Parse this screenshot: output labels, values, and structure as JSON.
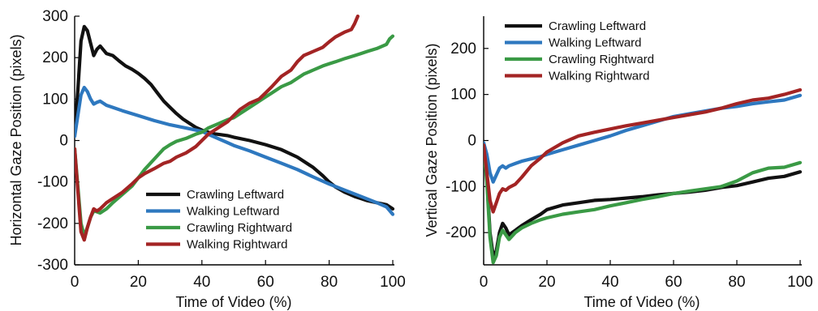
{
  "chart_data": [
    {
      "type": "line",
      "xlabel": "Time of Video (%)",
      "ylabel": "Horizontal Gaze Position (pixels)",
      "xlim": [
        0,
        100
      ],
      "ylim": [
        -300,
        300
      ],
      "xticks": [
        "0",
        "20",
        "40",
        "60",
        "80",
        "100"
      ],
      "yticks": [
        "300",
        "200",
        "100",
        "0",
        "-100",
        "-200",
        "-300"
      ],
      "xtick_values": [
        0,
        20,
        40,
        60,
        80,
        100
      ],
      "ytick_values": [
        300,
        200,
        100,
        0,
        -100,
        -200,
        -300
      ],
      "legend_position": "bottom-right",
      "grid": false,
      "series": [
        {
          "name": "Crawling Leftward",
          "color": "#111111",
          "x": [
            0,
            1,
            2,
            3,
            4,
            5,
            6,
            7,
            8,
            10,
            12,
            14,
            16,
            18,
            20,
            22,
            24,
            26,
            28,
            30,
            32,
            34,
            36,
            38,
            40,
            42,
            44,
            46,
            48,
            50,
            55,
            60,
            65,
            70,
            75,
            78,
            80,
            82,
            85,
            88,
            90,
            92,
            95,
            98,
            100
          ],
          "y": [
            20,
            120,
            240,
            275,
            265,
            235,
            205,
            220,
            228,
            210,
            205,
            192,
            180,
            172,
            162,
            150,
            135,
            115,
            95,
            80,
            65,
            52,
            42,
            32,
            25,
            20,
            16,
            14,
            12,
            8,
            0,
            -10,
            -22,
            -40,
            -65,
            -85,
            -100,
            -112,
            -125,
            -135,
            -140,
            -145,
            -150,
            -155,
            -165
          ]
        },
        {
          "name": "Walking Leftward",
          "color": "#2e78bf",
          "x": [
            0,
            1,
            2,
            3,
            4,
            5,
            6,
            7,
            8,
            10,
            12,
            15,
            20,
            25,
            30,
            35,
            40,
            42,
            45,
            48,
            50,
            55,
            60,
            65,
            70,
            75,
            80,
            85,
            90,
            95,
            98,
            100
          ],
          "y": [
            10,
            60,
            110,
            128,
            118,
            100,
            88,
            92,
            95,
            85,
            80,
            72,
            60,
            48,
            38,
            30,
            22,
            15,
            5,
            -5,
            -12,
            -25,
            -40,
            -55,
            -70,
            -88,
            -105,
            -120,
            -135,
            -150,
            -160,
            -178
          ]
        },
        {
          "name": "Crawling Rightward",
          "color": "#3a9a45",
          "x": [
            0,
            1,
            2,
            3,
            4,
            5,
            6,
            7,
            8,
            10,
            12,
            15,
            18,
            20,
            22,
            25,
            28,
            30,
            32,
            35,
            38,
            40,
            42,
            45,
            48,
            50,
            52,
            55,
            58,
            60,
            62,
            65,
            68,
            70,
            72,
            75,
            78,
            80,
            82,
            85,
            88,
            90,
            92,
            95,
            98,
            99,
            100
          ],
          "y": [
            -20,
            -110,
            -200,
            -230,
            -210,
            -185,
            -170,
            -172,
            -175,
            -165,
            -150,
            -130,
            -110,
            -90,
            -70,
            -45,
            -20,
            -10,
            -2,
            5,
            15,
            20,
            30,
            40,
            50,
            55,
            65,
            80,
            95,
            105,
            115,
            130,
            140,
            150,
            160,
            170,
            180,
            185,
            190,
            198,
            205,
            210,
            215,
            222,
            232,
            245,
            252
          ]
        },
        {
          "name": "Walking Rightward",
          "color": "#a32424",
          "x": [
            0,
            1,
            2,
            3,
            4,
            5,
            6,
            7,
            8,
            10,
            12,
            15,
            18,
            20,
            22,
            25,
            28,
            30,
            32,
            35,
            38,
            40,
            42,
            45,
            48,
            50,
            52,
            55,
            58,
            60,
            62,
            65,
            68,
            70,
            72,
            75,
            78,
            80,
            82,
            85,
            87,
            88,
            89
          ],
          "y": [
            -20,
            -120,
            -220,
            -240,
            -210,
            -185,
            -165,
            -170,
            -165,
            -150,
            -140,
            -125,
            -105,
            -90,
            -80,
            -68,
            -55,
            -50,
            -40,
            -30,
            -15,
            0,
            15,
            30,
            45,
            60,
            75,
            90,
            100,
            115,
            130,
            155,
            170,
            190,
            205,
            215,
            225,
            238,
            250,
            262,
            268,
            282,
            300
          ]
        }
      ]
    },
    {
      "type": "line",
      "xlabel": "Time of Video (%)",
      "ylabel": "Vertical Gaze Position (pixels)",
      "xlim": [
        0,
        100
      ],
      "ylim": [
        -270,
        270
      ],
      "xticks": [
        "0",
        "20",
        "40",
        "60",
        "80",
        "100"
      ],
      "yticks": [
        "200",
        "100",
        "0",
        "-100",
        "-200"
      ],
      "xtick_values": [
        0,
        20,
        40,
        60,
        80,
        100
      ],
      "ytick_values": [
        200,
        100,
        0,
        -100,
        -200
      ],
      "legend_position": "top-left",
      "grid": false,
      "series": [
        {
          "name": "Crawling Leftward",
          "color": "#111111",
          "x": [
            0,
            1,
            2,
            3,
            4,
            5,
            6,
            7,
            8,
            10,
            12,
            15,
            18,
            20,
            25,
            30,
            35,
            40,
            45,
            50,
            55,
            60,
            65,
            70,
            75,
            80,
            85,
            90,
            95,
            100
          ],
          "y": [
            -10,
            -80,
            -200,
            -250,
            -240,
            -200,
            -180,
            -190,
            -205,
            -195,
            -185,
            -172,
            -160,
            -150,
            -140,
            -135,
            -130,
            -128,
            -125,
            -122,
            -118,
            -115,
            -112,
            -108,
            -102,
            -98,
            -90,
            -82,
            -78,
            -68
          ]
        },
        {
          "name": "Walking Leftward",
          "color": "#2e78bf",
          "x": [
            0,
            1,
            2,
            3,
            4,
            5,
            6,
            7,
            8,
            10,
            12,
            15,
            18,
            20,
            25,
            30,
            35,
            40,
            45,
            50,
            55,
            60,
            65,
            70,
            75,
            80,
            85,
            90,
            95,
            100
          ],
          "y": [
            -5,
            -30,
            -70,
            -90,
            -75,
            -60,
            -55,
            -60,
            -55,
            -50,
            -45,
            -40,
            -35,
            -30,
            -20,
            -10,
            0,
            10,
            22,
            32,
            42,
            52,
            58,
            64,
            70,
            74,
            80,
            84,
            88,
            98
          ]
        },
        {
          "name": "Crawling Rightward",
          "color": "#3a9a45",
          "x": [
            0,
            1,
            2,
            3,
            4,
            5,
            6,
            7,
            8,
            10,
            12,
            15,
            18,
            20,
            25,
            30,
            35,
            40,
            45,
            50,
            55,
            60,
            65,
            70,
            75,
            80,
            85,
            90,
            95,
            100
          ],
          "y": [
            -15,
            -90,
            -210,
            -265,
            -250,
            -210,
            -195,
            -205,
            -215,
            -200,
            -190,
            -180,
            -172,
            -168,
            -160,
            -155,
            -150,
            -142,
            -135,
            -128,
            -122,
            -115,
            -110,
            -105,
            -100,
            -88,
            -70,
            -60,
            -58,
            -48
          ]
        },
        {
          "name": "Walking Rightward",
          "color": "#a32424",
          "x": [
            0,
            1,
            2,
            3,
            4,
            5,
            6,
            7,
            8,
            10,
            12,
            15,
            18,
            20,
            25,
            30,
            35,
            40,
            45,
            50,
            55,
            60,
            65,
            70,
            75,
            80,
            85,
            90,
            95,
            100
          ],
          "y": [
            -10,
            -70,
            -130,
            -155,
            -135,
            -115,
            -105,
            -108,
            -102,
            -95,
            -80,
            -55,
            -38,
            -25,
            -5,
            10,
            18,
            25,
            32,
            38,
            44,
            50,
            56,
            62,
            70,
            80,
            88,
            92,
            100,
            110
          ]
        }
      ]
    }
  ]
}
